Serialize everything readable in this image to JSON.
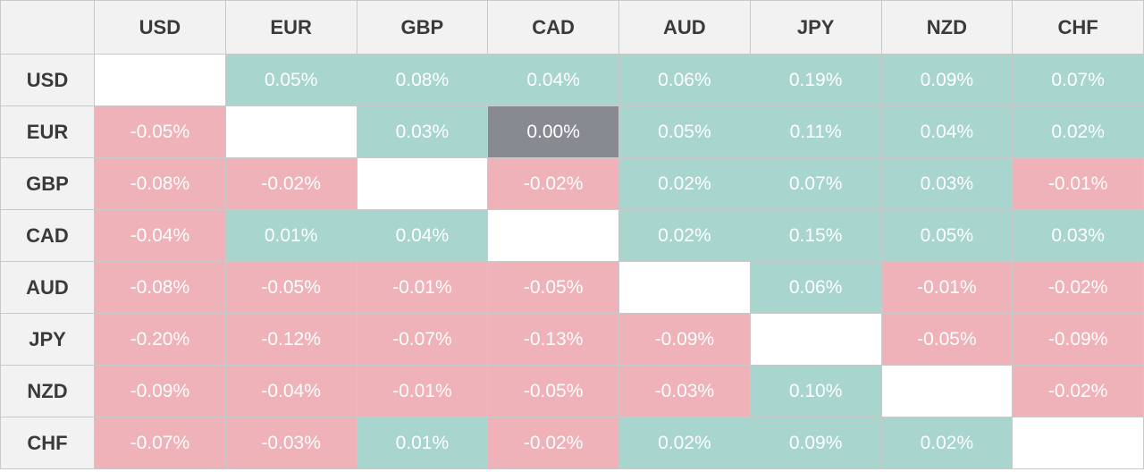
{
  "currencies": [
    "USD",
    "EUR",
    "GBP",
    "CAD",
    "AUD",
    "JPY",
    "NZD",
    "CHF"
  ],
  "colors": {
    "positive": "#a8d5ce",
    "negative": "#efb2b8",
    "zero": "#878a90",
    "diagonal": "#ffffff",
    "header_bg": "#f2f2f2"
  },
  "chart_data": {
    "type": "heatmap",
    "rows": [
      "USD",
      "EUR",
      "GBP",
      "CAD",
      "AUD",
      "JPY",
      "NZD",
      "CHF"
    ],
    "columns": [
      "USD",
      "EUR",
      "GBP",
      "CAD",
      "AUD",
      "JPY",
      "NZD",
      "CHF"
    ],
    "values": [
      [
        null,
        "0.05%",
        "0.08%",
        "0.04%",
        "0.06%",
        "0.19%",
        "0.09%",
        "0.07%"
      ],
      [
        "-0.05%",
        null,
        "0.03%",
        "0.00%",
        "0.05%",
        "0.11%",
        "0.04%",
        "0.02%"
      ],
      [
        "-0.08%",
        "-0.02%",
        null,
        "-0.02%",
        "0.02%",
        "0.07%",
        "0.03%",
        "-0.01%"
      ],
      [
        "-0.04%",
        "0.01%",
        "0.04%",
        null,
        "0.02%",
        "0.15%",
        "0.05%",
        "0.03%"
      ],
      [
        "-0.08%",
        "-0.05%",
        "-0.01%",
        "-0.05%",
        null,
        "0.06%",
        "-0.01%",
        "-0.02%"
      ],
      [
        "-0.20%",
        "-0.12%",
        "-0.07%",
        "-0.13%",
        "-0.09%",
        null,
        "-0.05%",
        "-0.09%"
      ],
      [
        "-0.09%",
        "-0.04%",
        "-0.01%",
        "-0.05%",
        "-0.03%",
        "0.10%",
        null,
        "-0.02%"
      ],
      [
        "-0.07%",
        "-0.03%",
        "0.01%",
        "-0.02%",
        "0.02%",
        "0.09%",
        "0.02%",
        null
      ]
    ]
  }
}
